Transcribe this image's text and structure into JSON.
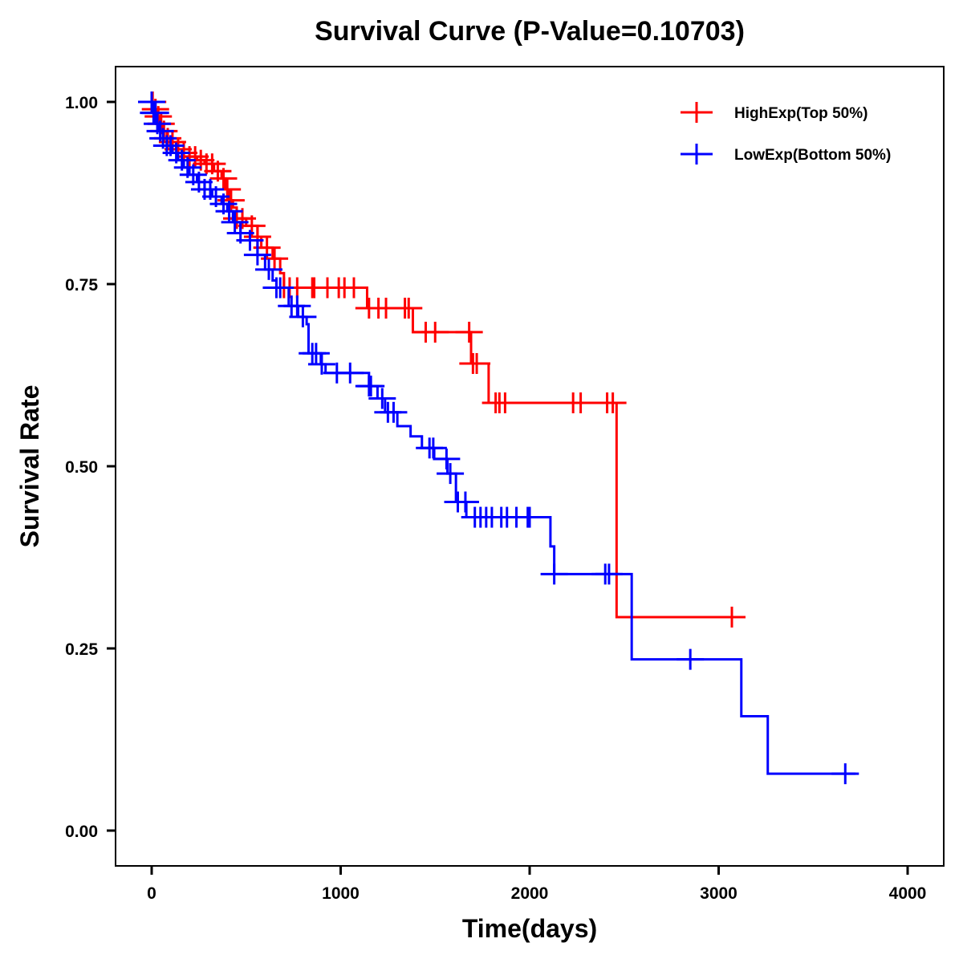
{
  "chart_data": {
    "type": "line",
    "subtype": "kaplan-meier-step",
    "title": "Survival Curve (P-Value=0.10703)",
    "xlabel": "Time(days)",
    "ylabel": "Survival Rate",
    "xlim": [
      -200,
      4200
    ],
    "ylim": [
      -0.05,
      1.05
    ],
    "xticks": [
      0,
      1000,
      2000,
      3000,
      4000
    ],
    "xtick_labels": [
      "0",
      "1000",
      "2000",
      "3000",
      "4000"
    ],
    "yticks": [
      0.0,
      0.25,
      0.5,
      0.75,
      1.0
    ],
    "ytick_labels": [
      "0.00",
      "0.25",
      "0.50",
      "0.75",
      "1.00"
    ],
    "grid": false,
    "legend_position": "top-right",
    "series": [
      {
        "name": "HighExp(Top 50%)",
        "color": "#ff0000",
        "steps": [
          [
            0,
            1.0
          ],
          [
            15,
            0.99
          ],
          [
            30,
            0.98
          ],
          [
            45,
            0.97
          ],
          [
            60,
            0.96
          ],
          [
            80,
            0.95
          ],
          [
            100,
            0.945
          ],
          [
            130,
            0.935
          ],
          [
            160,
            0.93
          ],
          [
            200,
            0.925
          ],
          [
            240,
            0.92
          ],
          [
            280,
            0.915
          ],
          [
            330,
            0.905
          ],
          [
            370,
            0.895
          ],
          [
            390,
            0.88
          ],
          [
            410,
            0.865
          ],
          [
            430,
            0.855
          ],
          [
            450,
            0.84
          ],
          [
            500,
            0.83
          ],
          [
            560,
            0.815
          ],
          [
            580,
            0.8
          ],
          [
            640,
            0.785
          ],
          [
            680,
            0.765
          ],
          [
            700,
            0.745
          ],
          [
            1140,
            0.717
          ],
          [
            1382,
            0.684
          ],
          [
            1690,
            0.641
          ],
          [
            1783,
            0.587
          ],
          [
            2460,
            0.293
          ]
        ],
        "end_time": 3120,
        "censor_times": [
          5,
          20,
          35,
          50,
          65,
          85,
          110,
          140,
          170,
          200,
          230,
          260,
          290,
          320,
          350,
          380,
          400,
          420,
          450,
          480,
          530,
          560,
          610,
          650,
          700,
          730,
          770,
          850,
          860,
          930,
          990,
          1020,
          1070,
          1150,
          1200,
          1240,
          1340,
          1360,
          1450,
          1500,
          1680,
          1700,
          1720,
          1820,
          1840,
          1870,
          2230,
          2270,
          2410,
          2440,
          3070
        ]
      },
      {
        "name": "LowExp(Bottom 50%)",
        "color": "#0000ff",
        "steps": [
          [
            0,
            1.0
          ],
          [
            10,
            0.985
          ],
          [
            25,
            0.97
          ],
          [
            40,
            0.96
          ],
          [
            60,
            0.95
          ],
          [
            80,
            0.94
          ],
          [
            110,
            0.93
          ],
          [
            140,
            0.92
          ],
          [
            170,
            0.91
          ],
          [
            200,
            0.9
          ],
          [
            240,
            0.89
          ],
          [
            280,
            0.88
          ],
          [
            320,
            0.87
          ],
          [
            370,
            0.86
          ],
          [
            400,
            0.85
          ],
          [
            430,
            0.835
          ],
          [
            470,
            0.82
          ],
          [
            520,
            0.81
          ],
          [
            560,
            0.79
          ],
          [
            600,
            0.77
          ],
          [
            640,
            0.755
          ],
          [
            660,
            0.745
          ],
          [
            725,
            0.72
          ],
          [
            775,
            0.705
          ],
          [
            820,
            0.695
          ],
          [
            830,
            0.655
          ],
          [
            895,
            0.64
          ],
          [
            920,
            0.628
          ],
          [
            1150,
            0.61
          ],
          [
            1195,
            0.593
          ],
          [
            1235,
            0.574
          ],
          [
            1300,
            0.555
          ],
          [
            1370,
            0.541
          ],
          [
            1430,
            0.525
          ],
          [
            1495,
            0.51
          ],
          [
            1565,
            0.49
          ],
          [
            1610,
            0.451
          ],
          [
            1665,
            0.43
          ],
          [
            2110,
            0.39
          ],
          [
            2130,
            0.352
          ],
          [
            2540,
            0.235
          ],
          [
            3120,
            0.157
          ],
          [
            3260,
            0.078
          ]
        ],
        "end_time": 3725,
        "censor_times": [
          0,
          10,
          20,
          30,
          45,
          60,
          80,
          100,
          130,
          160,
          190,
          220,
          250,
          280,
          310,
          340,
          380,
          410,
          440,
          470,
          520,
          560,
          620,
          660,
          680,
          740,
          770,
          800,
          850,
          870,
          900,
          980,
          1050,
          1150,
          1160,
          1220,
          1250,
          1280,
          1470,
          1490,
          1560,
          1580,
          1620,
          1660,
          1710,
          1740,
          1770,
          1800,
          1850,
          1880,
          1930,
          1990,
          2000,
          2130,
          2400,
          2420,
          2850,
          3670
        ]
      }
    ]
  }
}
